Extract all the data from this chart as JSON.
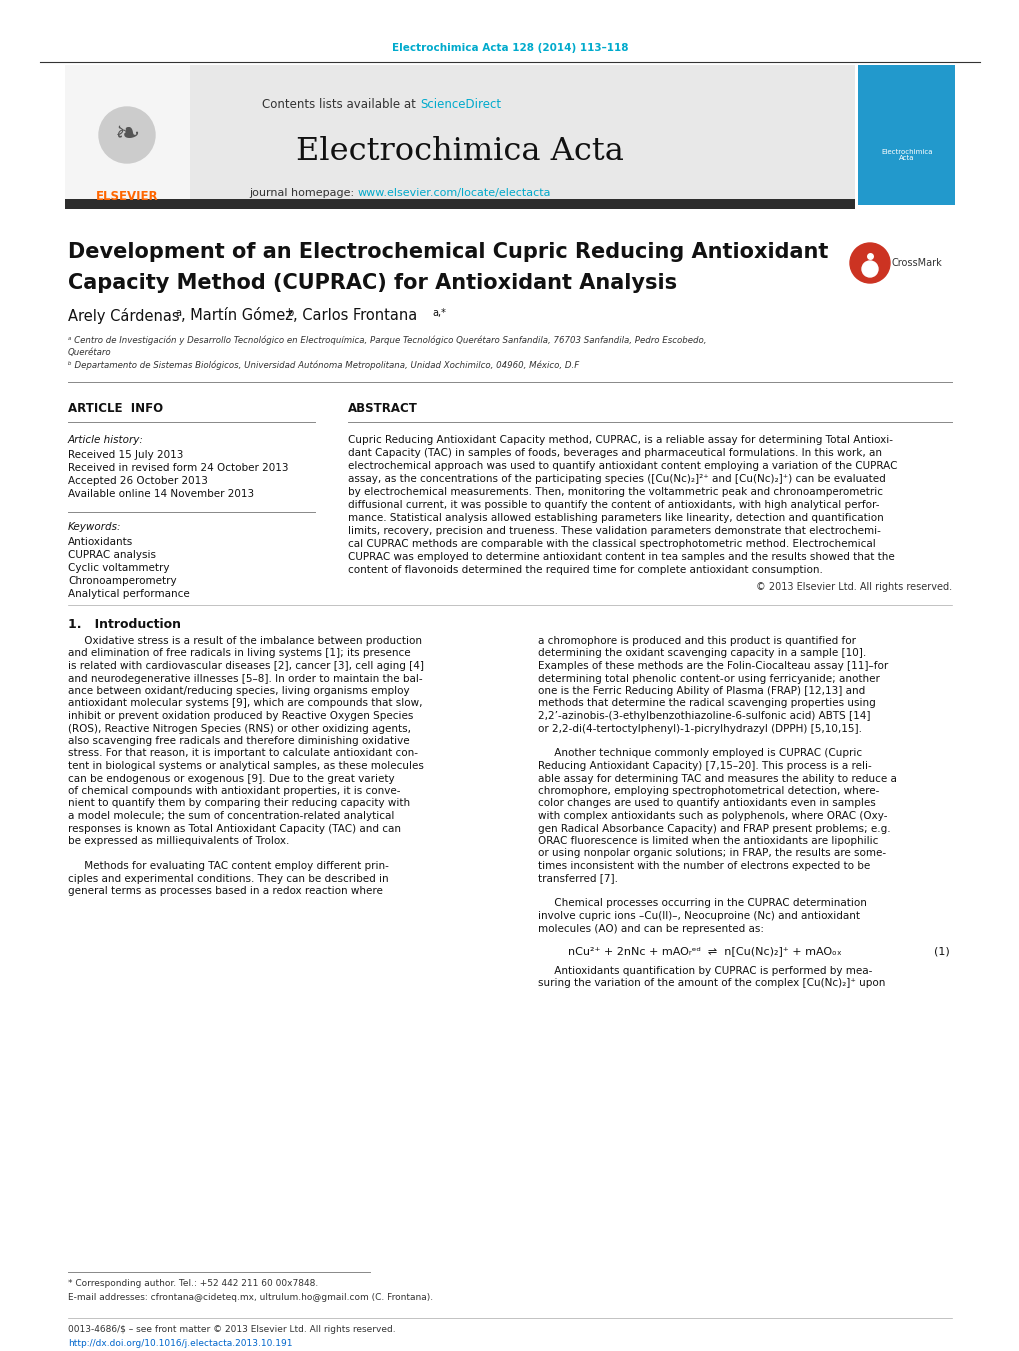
{
  "page_width": 10.2,
  "page_height": 13.51,
  "bg_color": "#ffffff",
  "journal_ref": "Electrochimica Acta 128 (2014) 113–118",
  "journal_ref_color": "#00aacc",
  "contents_text": "Contents lists available at ",
  "sciencedirect_text": "ScienceDirect",
  "sciencedirect_color": "#00aacc",
  "journal_name": "Electrochimica Acta",
  "journal_homepage_text": "journal homepage: ",
  "journal_homepage_url": "www.elsevier.com/locate/electacta",
  "journal_homepage_url_color": "#00aacc",
  "elsevier_color": "#ff6600",
  "header_bg": "#e8e8e8",
  "dark_bar_color": "#2d2d2d",
  "article_info_title": "ARTICLE  INFO",
  "abstract_title": "ABSTRACT",
  "article_history_label": "Article history:",
  "received": "Received 15 July 2013",
  "revised": "Received in revised form 24 October 2013",
  "accepted": "Accepted 26 October 2013",
  "available": "Available online 14 November 2013",
  "keywords_label": "Keywords:",
  "keywords": [
    "Antioxidants",
    "CUPRAC analysis",
    "Cyclic voltammetry",
    "Chronoamperometry",
    "Analytical performance"
  ],
  "copyright": "© 2013 Elsevier Ltd. All rights reserved.",
  "intro_title": "1.   Introduction",
  "footnote": "* Corresponding author. Tel.: +52 442 211 60 00x7848.",
  "footnote_email": "E-mail addresses: cfrontana@cideteq.mx, ultrulum.ho@gmail.com (C. Frontana).",
  "footer_issn": "0013-4686/$ – see front matter © 2013 Elsevier Ltd. All rights reserved.",
  "footer_doi": "http://dx.doi.org/10.1016/j.electacta.2013.10.191",
  "footer_doi_color": "#0066cc",
  "abstract_lines": [
    "Cupric Reducing Antioxidant Capacity method, CUPRAC, is a reliable assay for determining Total Antioxi-",
    "dant Capacity (TAC) in samples of foods, beverages and pharmaceutical formulations. In this work, an",
    "electrochemical approach was used to quantify antioxidant content employing a variation of the CUPRAC",
    "assay, as the concentrations of the participating species ([Cu(Nc)₂]²⁺ and [Cu(Nc)₂]⁺) can be evaluated",
    "by electrochemical measurements. Then, monitoring the voltammetric peak and chronoamperometric",
    "diffusional current, it was possible to quantify the content of antioxidants, with high analytical perfor-",
    "mance. Statistical analysis allowed establishing parameters like linearity, detection and quantification",
    "limits, recovery, precision and trueness. These validation parameters demonstrate that electrochemi-",
    "cal CUPRAC methods are comparable with the classical spectrophotometric method. Electrochemical",
    "CUPRAC was employed to determine antioxidant content in tea samples and the results showed that the",
    "content of flavonoids determined the required time for complete antioxidant consumption."
  ],
  "c1_lines": [
    "     Oxidative stress is a result of the imbalance between production",
    "and elimination of free radicals in living systems [1]; its presence",
    "is related with cardiovascular diseases [2], cancer [3], cell aging [4]",
    "and neurodegenerative illnesses [5–8]. In order to maintain the bal-",
    "ance between oxidant/reducing species, living organisms employ",
    "antioxidant molecular systems [9], which are compounds that slow,",
    "inhibit or prevent oxidation produced by Reactive Oxygen Species",
    "(ROS), Reactive Nitrogen Species (RNS) or other oxidizing agents,",
    "also scavenging free radicals and therefore diminishing oxidative",
    "stress. For that reason, it is important to calculate antioxidant con-",
    "tent in biological systems or analytical samples, as these molecules",
    "can be endogenous or exogenous [9]. Due to the great variety",
    "of chemical compounds with antioxidant properties, it is conve-",
    "nient to quantify them by comparing their reducing capacity with",
    "a model molecule; the sum of concentration-related analytical",
    "responses is known as Total Antioxidant Capacity (TAC) and can",
    "be expressed as milliequivalents of Trolox.",
    "",
    "     Methods for evaluating TAC content employ different prin-",
    "ciples and experimental conditions. They can be described in",
    "general terms as processes based in a redox reaction where"
  ],
  "c2_lines": [
    "a chromophore is produced and this product is quantified for",
    "determining the oxidant scavenging capacity in a sample [10].",
    "Examples of these methods are the Folin-Ciocalteau assay [11]–for",
    "determining total phenolic content-or using ferricyanide; another",
    "one is the Ferric Reducing Ability of Plasma (FRAP) [12,13] and",
    "methods that determine the radical scavenging properties using",
    "2,2’-azinobis-(3-ethylbenzothiazoline-6-sulfonic acid) ABTS [14]",
    "or 2,2-di(4-tertoctylphenyl)-1-picrylhydrazyl (DPPH) [5,10,15].",
    "",
    "     Another technique commonly employed is CUPRAC (Cupric",
    "Reducing Antioxidant Capacity) [7,15–20]. This process is a reli-",
    "able assay for determining TAC and measures the ability to reduce a",
    "chromophore, employing spectrophotometrical detection, where-",
    "color changes are used to quantify antioxidants even in samples",
    "with complex antioxidants such as polyphenols, where ORAC (Oxy-",
    "gen Radical Absorbance Capacity) and FRAP present problems; e.g.",
    "ORAC fluorescence is limited when the antioxidants are lipophilic",
    "or using nonpolar organic solutions; in FRAP, the results are some-",
    "times inconsistent with the number of electrons expected to be",
    "transferred [7].",
    "",
    "     Chemical processes occurring in the CUPRAC determination",
    "involve cupric ions –Cu(II)–, Neocuproine (Nc) and antioxidant",
    "molecules (AO) and can be represented as:"
  ],
  "c2_after_eq": [
    "     Antioxidants quantification by CUPRAC is performed by mea-",
    "suring the variation of the amount of the complex [Cu(Nc)₂]⁺ upon"
  ],
  "equation1": "nCu²⁺ + 2nNc + mAOᵣᵉᵈ  ⇌  n[Cu(Nc)₂]⁺ + mAOₒₓ",
  "eq1_label": "(1)"
}
